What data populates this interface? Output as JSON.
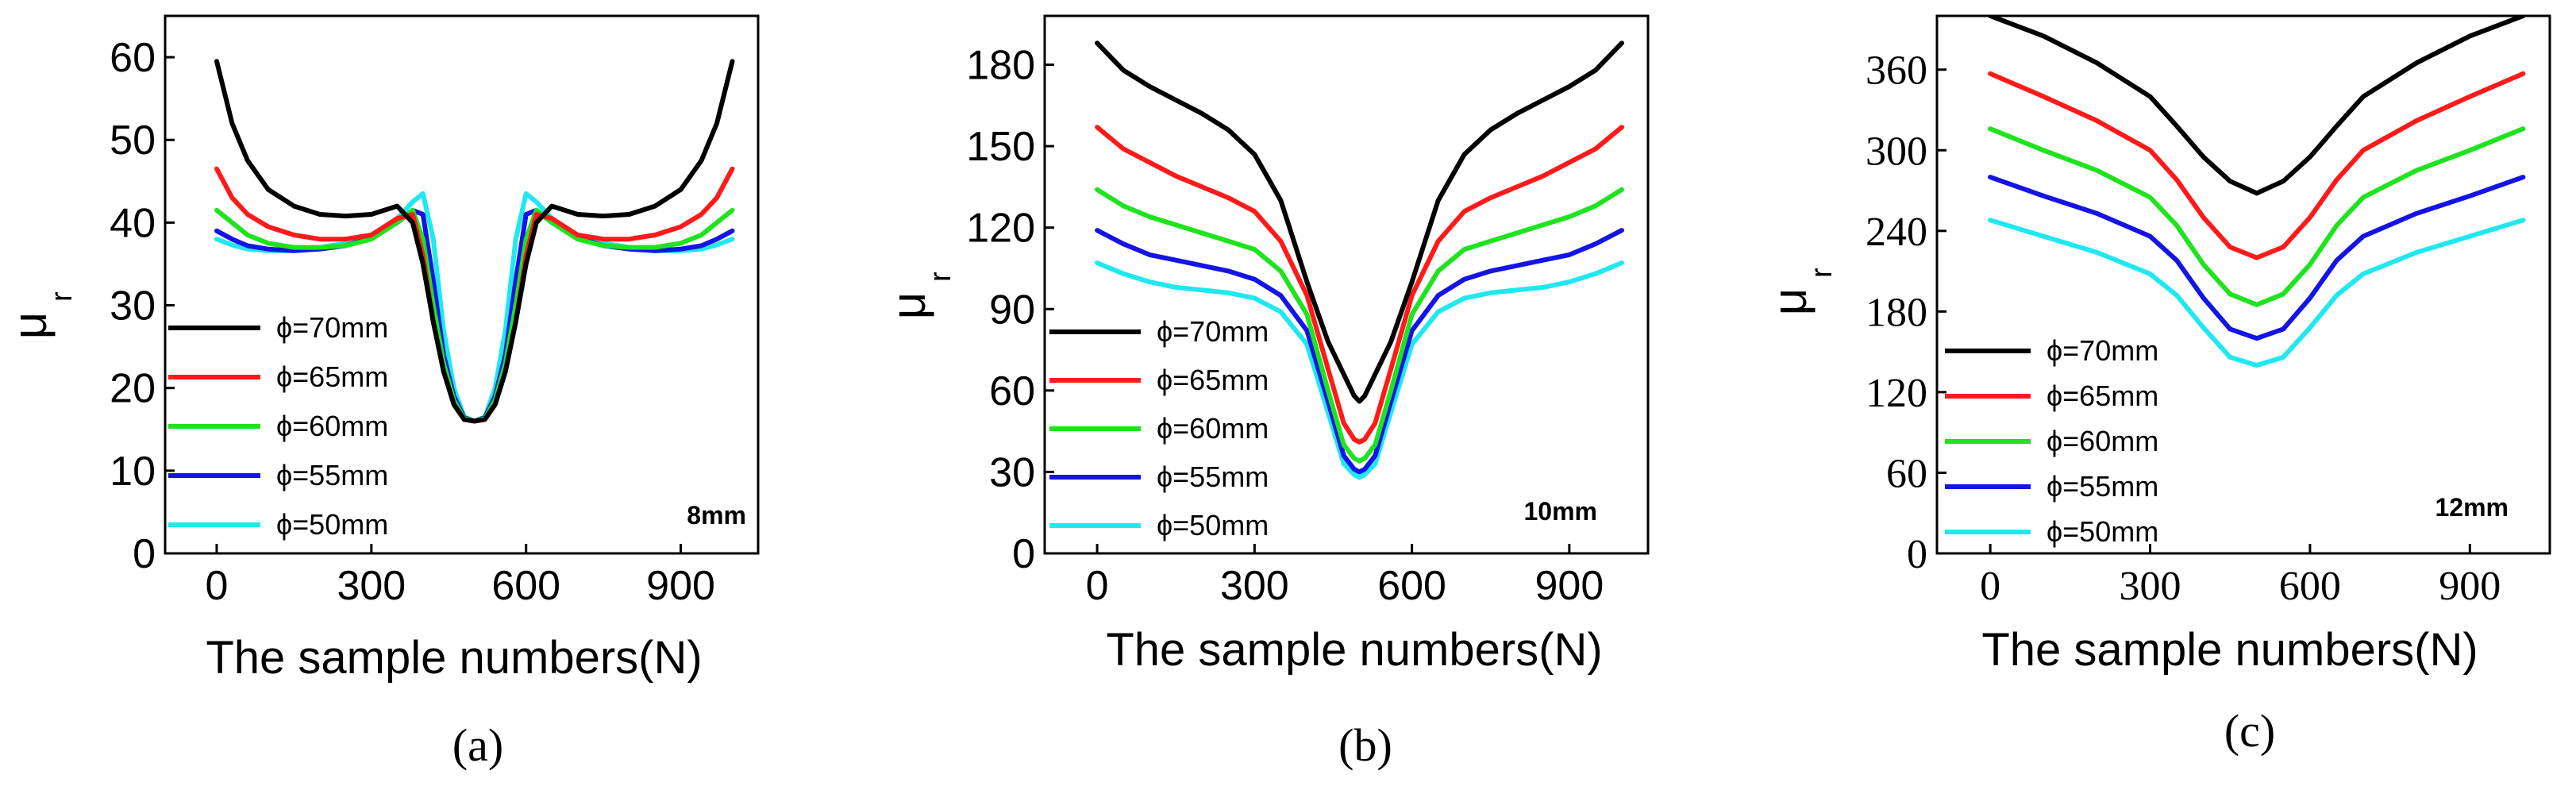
{
  "chart_data": [
    {
      "type": "line",
      "title": "",
      "caption": "(a)",
      "thickness_label": "8mm",
      "xlabel": "The sample numbers(N)",
      "ylabel": "μ",
      "ylabel_sub": "r",
      "xlim": [
        -100,
        1050
      ],
      "ylim": [
        0,
        65
      ],
      "xticks": [
        0,
        300,
        600,
        900
      ],
      "xtick_labels": [
        "0",
        "300",
        "600",
        "900"
      ],
      "yticks": [
        0,
        10,
        20,
        30,
        40,
        50,
        60
      ],
      "ytick_labels": [
        "0",
        "10",
        "20",
        "30",
        "40",
        "50",
        "60"
      ],
      "legend_position": "left",
      "series": [
        {
          "name": "ϕ=70mm",
          "color": "#000000",
          "x": [
            0,
            30,
            60,
            100,
            150,
            200,
            250,
            300,
            350,
            380,
            400,
            420,
            440,
            460,
            480,
            500,
            520,
            540,
            560,
            580,
            600,
            620,
            650,
            700,
            750,
            800,
            850,
            900,
            940,
            970,
            1000
          ],
          "y": [
            59.5,
            52,
            47.5,
            44,
            42,
            41,
            40.8,
            41,
            42,
            40,
            35,
            28,
            22,
            18,
            16.2,
            16,
            16.2,
            18,
            22,
            28,
            35,
            40,
            42,
            41,
            40.8,
            41,
            42,
            44,
            47.5,
            52,
            59.5
          ]
        },
        {
          "name": "ϕ=65mm",
          "color": "#ff1a1a",
          "x": [
            0,
            30,
            60,
            100,
            150,
            200,
            250,
            300,
            350,
            380,
            400,
            420,
            440,
            460,
            480,
            500,
            520,
            540,
            560,
            580,
            600,
            620,
            650,
            700,
            750,
            800,
            850,
            900,
            940,
            970,
            1000
          ],
          "y": [
            46.5,
            43,
            41,
            39.5,
            38.5,
            38,
            38,
            38.5,
            40.5,
            41,
            36,
            28,
            22,
            18,
            16.2,
            16,
            16.2,
            18,
            22,
            28,
            36,
            41,
            40.5,
            38.5,
            38,
            38,
            38.5,
            39.5,
            41,
            43,
            46.5
          ]
        },
        {
          "name": "ϕ=60mm",
          "color": "#1ee31e",
          "x": [
            0,
            30,
            60,
            100,
            150,
            200,
            250,
            300,
            350,
            380,
            400,
            420,
            440,
            460,
            480,
            500,
            520,
            540,
            560,
            580,
            600,
            620,
            650,
            700,
            750,
            800,
            850,
            900,
            940,
            970,
            1000
          ],
          "y": [
            41.5,
            40,
            38.5,
            37.5,
            37,
            37,
            37.2,
            38,
            40,
            41.5,
            38,
            30,
            23,
            18.5,
            16.3,
            16,
            16.3,
            18.5,
            23,
            30,
            38,
            41.5,
            40,
            38,
            37.2,
            37,
            37,
            37.5,
            38.5,
            40,
            41.5
          ]
        },
        {
          "name": "ϕ=55mm",
          "color": "#1414e6",
          "x": [
            0,
            30,
            60,
            100,
            150,
            200,
            250,
            300,
            350,
            380,
            400,
            420,
            440,
            460,
            480,
            500,
            520,
            540,
            560,
            580,
            600,
            620,
            650,
            700,
            750,
            800,
            850,
            900,
            940,
            970,
            1000
          ],
          "y": [
            39,
            38,
            37.2,
            36.8,
            36.6,
            36.8,
            37.2,
            38.2,
            40,
            41.5,
            41,
            33,
            24,
            19,
            16.4,
            16,
            16.4,
            19,
            24,
            33,
            41,
            41.5,
            40,
            38.2,
            37.2,
            36.8,
            36.6,
            36.8,
            37.2,
            38,
            39
          ]
        },
        {
          "name": "ϕ=50mm",
          "color": "#1fe8f0",
          "x": [
            0,
            30,
            60,
            100,
            150,
            200,
            250,
            300,
            350,
            380,
            400,
            420,
            440,
            460,
            480,
            500,
            520,
            540,
            560,
            580,
            600,
            620,
            650,
            700,
            750,
            800,
            850,
            900,
            940,
            970,
            1000
          ],
          "y": [
            38,
            37.3,
            36.8,
            36.6,
            36.6,
            37,
            37.5,
            38.5,
            40.5,
            42.5,
            43.5,
            38,
            27,
            20,
            16.5,
            16,
            16.5,
            20,
            27,
            38,
            43.5,
            42.5,
            40.5,
            38.5,
            37.5,
            37,
            36.6,
            36.6,
            36.8,
            37.3,
            38
          ]
        }
      ]
    },
    {
      "type": "line",
      "title": "",
      "caption": "(b)",
      "thickness_label": "10mm",
      "xlabel": "The sample numbers(N)",
      "ylabel": "μ",
      "ylabel_sub": "r",
      "xlim": [
        -100,
        1050
      ],
      "ylim": [
        0,
        198
      ],
      "xticks": [
        0,
        300,
        600,
        900
      ],
      "xtick_labels": [
        "0",
        "300",
        "600",
        "900"
      ],
      "yticks": [
        0,
        30,
        60,
        90,
        120,
        150,
        180
      ],
      "ytick_labels": [
        "0",
        "30",
        "60",
        "90",
        "120",
        "150",
        "180"
      ],
      "legend_position": "left",
      "series": [
        {
          "name": "ϕ=70mm",
          "color": "#000000",
          "x": [
            0,
            50,
            100,
            150,
            200,
            250,
            300,
            350,
            400,
            440,
            470,
            490,
            500,
            510,
            530,
            560,
            600,
            650,
            700,
            750,
            800,
            850,
            900,
            950,
            1000
          ],
          "y": [
            188,
            178,
            172,
            167,
            162,
            156,
            147,
            130,
            100,
            78,
            66,
            58,
            56,
            58,
            66,
            78,
            100,
            130,
            147,
            156,
            162,
            167,
            172,
            178,
            188
          ]
        },
        {
          "name": "ϕ=65mm",
          "color": "#ff1a1a",
          "x": [
            0,
            50,
            100,
            150,
            200,
            250,
            300,
            350,
            400,
            440,
            470,
            490,
            500,
            510,
            530,
            560,
            600,
            650,
            700,
            750,
            800,
            850,
            900,
            950,
            1000
          ],
          "y": [
            157,
            149,
            144,
            139,
            135,
            131,
            126,
            115,
            95,
            68,
            48,
            42,
            41,
            42,
            48,
            68,
            95,
            115,
            126,
            131,
            135,
            139,
            144,
            149,
            157
          ]
        },
        {
          "name": "ϕ=60mm",
          "color": "#1ee31e",
          "x": [
            0,
            50,
            100,
            150,
            200,
            250,
            300,
            350,
            400,
            440,
            470,
            490,
            500,
            510,
            530,
            560,
            600,
            650,
            700,
            750,
            800,
            850,
            900,
            950,
            1000
          ],
          "y": [
            134,
            128,
            124,
            121,
            118,
            115,
            112,
            104,
            88,
            60,
            40,
            35,
            34,
            35,
            40,
            60,
            88,
            104,
            112,
            115,
            118,
            121,
            124,
            128,
            134
          ]
        },
        {
          "name": "ϕ=55mm",
          "color": "#1414e6",
          "x": [
            0,
            50,
            100,
            150,
            200,
            250,
            300,
            350,
            400,
            440,
            470,
            490,
            500,
            510,
            530,
            560,
            600,
            650,
            700,
            750,
            800,
            850,
            900,
            950,
            1000
          ],
          "y": [
            119,
            114,
            110,
            108,
            106,
            104,
            101,
            95,
            82,
            56,
            36,
            31,
            30,
            31,
            36,
            56,
            82,
            95,
            101,
            104,
            106,
            108,
            110,
            114,
            119
          ]
        },
        {
          "name": "ϕ=50mm",
          "color": "#1fe8f0",
          "x": [
            0,
            50,
            100,
            150,
            200,
            250,
            300,
            350,
            400,
            440,
            470,
            490,
            500,
            510,
            530,
            560,
            600,
            650,
            700,
            750,
            800,
            850,
            900,
            950,
            1000
          ],
          "y": [
            107,
            103,
            100,
            98,
            97,
            96,
            94,
            89,
            77,
            52,
            33,
            29,
            28,
            29,
            33,
            52,
            77,
            89,
            94,
            96,
            97,
            98,
            100,
            103,
            107
          ]
        }
      ]
    },
    {
      "type": "line",
      "title": "",
      "caption": "(c)",
      "thickness_label": "12mm",
      "xlabel": "The sample numbers(N)",
      "ylabel": "μ",
      "ylabel_sub": "r",
      "xlim": [
        -100,
        1050
      ],
      "ylim": [
        0,
        400
      ],
      "xticks": [
        0,
        300,
        600,
        900
      ],
      "xtick_labels": [
        "0",
        "300",
        "600",
        "900"
      ],
      "yticks": [
        0,
        60,
        120,
        180,
        240,
        300,
        360
      ],
      "ytick_labels": [
        "0",
        "60",
        "120",
        "180",
        "240",
        "300",
        "360"
      ],
      "legend_position": "left",
      "series": [
        {
          "name": "ϕ=70mm",
          "color": "#000000",
          "x": [
            0,
            100,
            200,
            300,
            350,
            400,
            450,
            500,
            550,
            600,
            650,
            700,
            800,
            900,
            1000
          ],
          "y": [
            400,
            385,
            365,
            340,
            318,
            295,
            277,
            268,
            277,
            295,
            318,
            340,
            365,
            385,
            400
          ]
        },
        {
          "name": "ϕ=65mm",
          "color": "#ff1a1a",
          "x": [
            0,
            100,
            200,
            300,
            350,
            400,
            450,
            500,
            550,
            600,
            650,
            700,
            800,
            900,
            1000
          ],
          "y": [
            357,
            340,
            322,
            300,
            278,
            250,
            228,
            220,
            228,
            250,
            278,
            300,
            322,
            340,
            357
          ]
        },
        {
          "name": "ϕ=60mm",
          "color": "#1ee31e",
          "x": [
            0,
            100,
            200,
            300,
            350,
            400,
            450,
            500,
            550,
            600,
            650,
            700,
            800,
            900,
            1000
          ],
          "y": [
            316,
            300,
            285,
            265,
            244,
            215,
            193,
            185,
            193,
            215,
            244,
            265,
            285,
            300,
            316
          ]
        },
        {
          "name": "ϕ=55mm",
          "color": "#1414e6",
          "x": [
            0,
            100,
            200,
            300,
            350,
            400,
            450,
            500,
            550,
            600,
            650,
            700,
            800,
            900,
            1000
          ],
          "y": [
            280,
            266,
            253,
            236,
            218,
            190,
            167,
            160,
            167,
            190,
            218,
            236,
            253,
            266,
            280
          ]
        },
        {
          "name": "ϕ=50mm",
          "color": "#1fe8f0",
          "x": [
            0,
            100,
            200,
            300,
            350,
            400,
            450,
            500,
            550,
            600,
            650,
            700,
            800,
            900,
            1000
          ],
          "y": [
            248,
            236,
            224,
            208,
            192,
            168,
            146,
            140,
            146,
            168,
            192,
            208,
            224,
            236,
            248
          ]
        }
      ]
    }
  ]
}
